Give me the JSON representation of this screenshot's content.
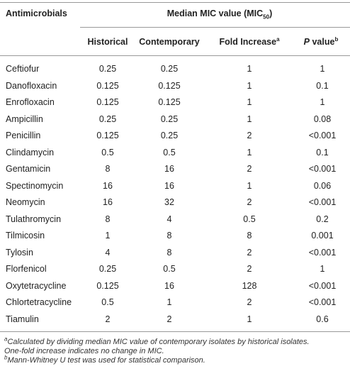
{
  "table": {
    "header": {
      "first": "Antimicrobials",
      "group": {
        "text": "Median MIC value (MIC",
        "sub": "50",
        "end": ")"
      },
      "columns": [
        {
          "text": "Historical"
        },
        {
          "text": "Contemporary"
        },
        {
          "text": "Fold Increase",
          "sup": "a"
        },
        {
          "italic": "P",
          "text": " value",
          "sup": "b"
        }
      ]
    },
    "rows": [
      [
        "Ceftiofur",
        "0.25",
        "0.25",
        "1",
        "1"
      ],
      [
        "Danofloxacin",
        "0.125",
        "0.125",
        "1",
        "0.1"
      ],
      [
        "Enrofloxacin",
        "0.125",
        "0.125",
        "1",
        "1"
      ],
      [
        "Ampicillin",
        "0.25",
        "0.25",
        "1",
        "0.08"
      ],
      [
        "Penicillin",
        "0.125",
        "0.25",
        "2",
        "<0.001"
      ],
      [
        "Clindamycin",
        "0.5",
        "0.5",
        "1",
        "0.1"
      ],
      [
        "Gentamicin",
        "8",
        "16",
        "2",
        "<0.001"
      ],
      [
        "Spectinomycin",
        "16",
        "16",
        "1",
        "0.06"
      ],
      [
        "Neomycin",
        "16",
        "32",
        "2",
        "<0.001"
      ],
      [
        "Tulathromycin",
        "8",
        "4",
        "0.5",
        "0.2"
      ],
      [
        "Tilmicosin",
        "1",
        "8",
        "8",
        "0.001"
      ],
      [
        "Tylosin",
        "4",
        "8",
        "2",
        "<0.001"
      ],
      [
        "Florfenicol",
        "0.25",
        "0.5",
        "2",
        "1"
      ],
      [
        "Oxytetracycline",
        "0.125",
        "16",
        "128",
        "<0.001"
      ],
      [
        "Chlortetracycline",
        "0.5",
        "1",
        "2",
        "<0.001"
      ],
      [
        "Tiamulin",
        "2",
        "2",
        "1",
        "0.6"
      ]
    ],
    "footnotes": [
      {
        "sup": "a",
        "lines": [
          "Calculated by dividing median MIC value of contemporary isolates by historical isolates.",
          "One-fold increase indicates no change in MIC."
        ]
      },
      {
        "sup": "b",
        "lines": [
          "Mann-Whitney U test was used for statistical comparison."
        ]
      }
    ]
  }
}
